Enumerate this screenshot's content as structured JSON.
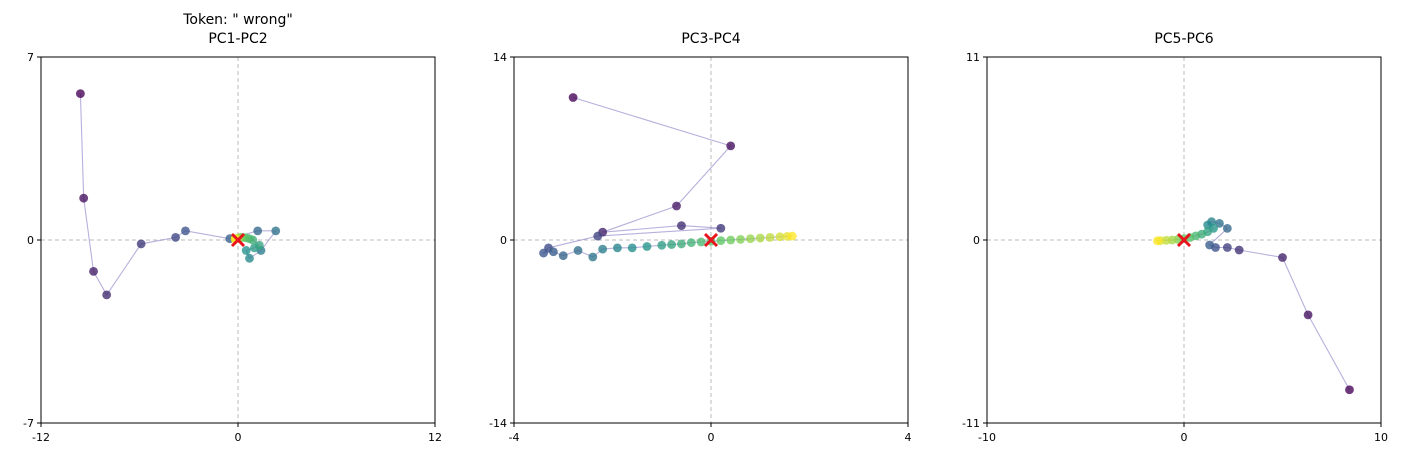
{
  "figure": {
    "title": "Token: \" wrong\""
  },
  "chart_data": [
    {
      "type": "scatter",
      "title": "PC1-PC2",
      "xlim": [
        -12,
        12
      ],
      "ylim": [
        -7,
        7
      ],
      "xticks": [
        "-12",
        "0",
        "12"
      ],
      "yticks": [
        "-7",
        "0",
        "7"
      ],
      "grid": "dashed lines at x=0 and y=0",
      "colormap": "viridis (early steps dark purple, late steps yellow)",
      "marker_origin": "red x at (0, 0)",
      "trajectory": [
        [
          -9.6,
          5.6
        ],
        [
          -9.4,
          1.6
        ],
        [
          -8.8,
          -1.2
        ],
        [
          -8.0,
          -2.1
        ],
        [
          -5.9,
          -0.15
        ],
        [
          -3.8,
          0.1
        ],
        [
          -3.2,
          0.35
        ],
        [
          -0.5,
          0.05
        ],
        [
          1.2,
          0.35
        ],
        [
          2.3,
          0.35
        ],
        [
          1.4,
          -0.4
        ],
        [
          0.7,
          -0.7
        ],
        [
          0.5,
          -0.4
        ],
        [
          1.0,
          -0.3
        ],
        [
          1.3,
          -0.2
        ],
        [
          0.9,
          0.0
        ],
        [
          0.7,
          0.05
        ],
        [
          0.5,
          0.08
        ],
        [
          0.3,
          0.1
        ],
        [
          0.15,
          0.1
        ],
        [
          0.05,
          0.08
        ],
        [
          -0.05,
          0.06
        ],
        [
          -0.1,
          0.05
        ],
        [
          -0.15,
          0.04
        ],
        [
          -0.18,
          0.04
        ]
      ]
    },
    {
      "type": "scatter",
      "title": "PC3-PC4",
      "xlim": [
        -4,
        4
      ],
      "ylim": [
        -14,
        14
      ],
      "xticks": [
        "-4",
        "0",
        "4"
      ],
      "yticks": [
        "-14",
        "0",
        "14"
      ],
      "grid": "dashed lines at x=0 and y=0",
      "colormap": "viridis (early steps dark purple, late steps yellow)",
      "marker_origin": "red x at (0, 0)",
      "trajectory": [
        [
          -2.8,
          10.9
        ],
        [
          0.4,
          7.2
        ],
        [
          -0.7,
          2.6
        ],
        [
          -2.2,
          0.6
        ],
        [
          -0.6,
          1.1
        ],
        [
          0.2,
          0.9
        ],
        [
          -2.3,
          0.3
        ],
        [
          -3.3,
          -0.6
        ],
        [
          -3.4,
          -1.0
        ],
        [
          -3.2,
          -0.9
        ],
        [
          -3.0,
          -1.2
        ],
        [
          -2.7,
          -0.8
        ],
        [
          -2.4,
          -1.3
        ],
        [
          -2.2,
          -0.7
        ],
        [
          -1.9,
          -0.6
        ],
        [
          -1.6,
          -0.6
        ],
        [
          -1.3,
          -0.5
        ],
        [
          -1.0,
          -0.4
        ],
        [
          -0.8,
          -0.35
        ],
        [
          -0.6,
          -0.3
        ],
        [
          -0.4,
          -0.2
        ],
        [
          -0.2,
          -0.15
        ],
        [
          0.0,
          -0.1
        ],
        [
          0.2,
          -0.05
        ],
        [
          0.4,
          0.0
        ],
        [
          0.6,
          0.05
        ],
        [
          0.8,
          0.1
        ],
        [
          1.0,
          0.15
        ],
        [
          1.2,
          0.2
        ],
        [
          1.4,
          0.25
        ],
        [
          1.55,
          0.28
        ],
        [
          1.65,
          0.3
        ]
      ]
    },
    {
      "type": "scatter",
      "title": "PC5-PC6",
      "xlim": [
        -10,
        10
      ],
      "ylim": [
        -11,
        11
      ],
      "xticks": [
        "-10",
        "0",
        "10"
      ],
      "yticks": [
        "-11",
        "0",
        "11"
      ],
      "grid": "dashed lines at x=0 and y=0",
      "colormap": "viridis (early steps dark purple, late steps yellow)",
      "marker_origin": "red x at (0, 0)",
      "trajectory": [
        [
          8.4,
          -9.0
        ],
        [
          6.3,
          -4.5
        ],
        [
          5.0,
          -1.05
        ],
        [
          2.8,
          -0.6
        ],
        [
          2.2,
          -0.45
        ],
        [
          1.6,
          -0.45
        ],
        [
          1.3,
          -0.3
        ],
        [
          2.2,
          0.7
        ],
        [
          1.8,
          1.0
        ],
        [
          1.4,
          1.1
        ],
        [
          1.2,
          0.9
        ],
        [
          1.5,
          0.7
        ],
        [
          1.2,
          0.5
        ],
        [
          0.9,
          0.35
        ],
        [
          0.6,
          0.25
        ],
        [
          0.3,
          0.15
        ],
        [
          0.0,
          0.08
        ],
        [
          -0.3,
          0.04
        ],
        [
          -0.6,
          0.0
        ],
        [
          -0.9,
          -0.02
        ],
        [
          -1.2,
          -0.04
        ],
        [
          -1.35,
          -0.05
        ]
      ]
    }
  ]
}
